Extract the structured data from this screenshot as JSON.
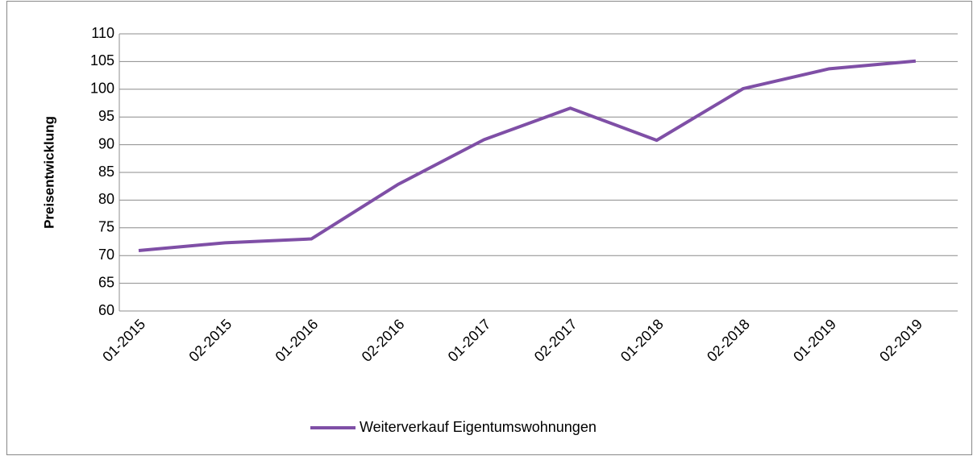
{
  "chart_data": {
    "type": "line",
    "y_label": "Preisentwicklung",
    "categories": [
      "01-2015",
      "02-2015",
      "01-2016",
      "02-2016",
      "01-2017",
      "02-2017",
      "01-2018",
      "02-2018",
      "01-2019",
      "02-2019"
    ],
    "series": [
      {
        "name": "Weiterverkauf Eigentumswohnungen",
        "color": "#7f4fa6",
        "values": [
          70.9,
          72.3,
          73.0,
          82.8,
          90.9,
          96.6,
          90.8,
          100.1,
          103.7,
          105.1
        ]
      }
    ],
    "ylim": [
      60,
      110
    ],
    "yticks": [
      60,
      65,
      70,
      75,
      80,
      85,
      90,
      95,
      100,
      105,
      110
    ],
    "grid": true,
    "legend": "bottom"
  }
}
